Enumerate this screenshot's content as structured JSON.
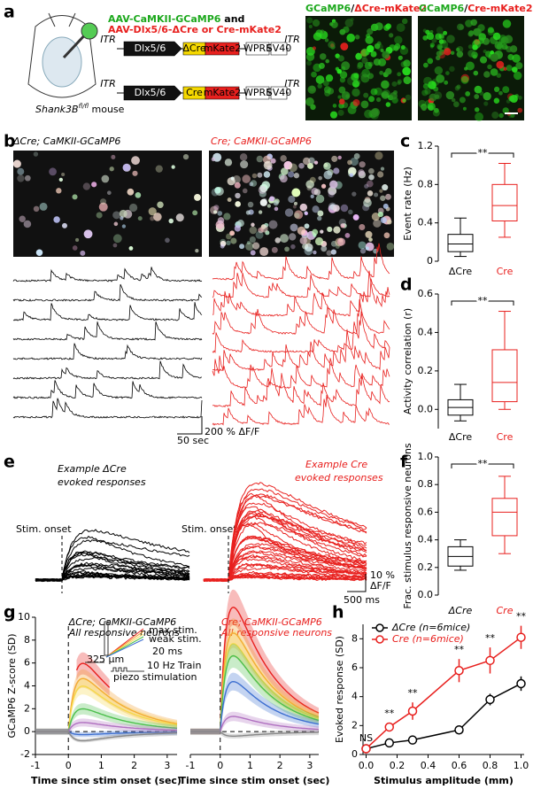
{
  "panel_labels": [
    "a",
    "b",
    "c",
    "d",
    "e",
    "f",
    "g",
    "h"
  ],
  "panel_a": {
    "mouse_name": "Shank3B",
    "mouse_sup": "fl/fl",
    "mouse_suffix": " mouse",
    "virus_green": "AAV-CaMKII-GCaMP6",
    "virus_and": " and",
    "virus_red": "AAV-Dlx5/6-ΔCre or Cre-mKate2",
    "construct1": [
      "ITR",
      "Dlx5/6",
      "ΔCre",
      "mKate2",
      "WPRE",
      "SV40",
      "ITR"
    ],
    "construct2": [
      "ITR",
      "Dlx5/6",
      "Cre",
      "mKate2",
      "WPRE",
      "SV40",
      "ITR"
    ],
    "image_titles": [
      {
        "green": "GCaMP6",
        "sep": "/",
        "red": "ΔCre-mKate2"
      },
      {
        "green": "GCaMP6",
        "sep": "/",
        "red": "Cre-mKate2"
      }
    ]
  },
  "panel_b": {
    "titles": [
      "ΔCre; CaMKII-GCaMP6",
      "Cre; CaMKII-GCaMP6"
    ],
    "scale_y": "200 % ΔF/F",
    "scale_x": "50 sec"
  },
  "panel_e": {
    "left_title": [
      "Example ΔCre",
      "evoked responses"
    ],
    "right_title": [
      "Example Cre",
      "evoked responses"
    ],
    "stim": "Stim. onset",
    "scale_y": [
      "10 %",
      "ΔF/F"
    ],
    "scale_x": "500 ms"
  },
  "panel_g_inset": {
    "depth": "325 µm",
    "max": "max stim.",
    "weak": "weak stim.",
    "pulse": "20 ms",
    "train": "10 Hz Train",
    "piezo": "piezo stimulation"
  },
  "chart_data": [
    {
      "type": "box",
      "ylabel": "Event rate (Hz)",
      "categories": [
        "ΔCre",
        "Cre"
      ],
      "colors": [
        "#000000",
        "#e8201e"
      ],
      "boxes": [
        {
          "whislo": 0.05,
          "q1": 0.1,
          "med": 0.18,
          "q3": 0.28,
          "whishi": 0.45
        },
        {
          "whislo": 0.25,
          "q1": 0.42,
          "med": 0.58,
          "q3": 0.8,
          "whishi": 1.02
        }
      ],
      "ylim": [
        0,
        1.2
      ],
      "yticks": [
        0,
        0.4,
        0.8,
        1.2
      ],
      "annotation": "**"
    },
    {
      "type": "box",
      "ylabel": "Activity correlation (r)",
      "categories": [
        "ΔCre",
        "Cre"
      ],
      "colors": [
        "#000000",
        "#e8201e"
      ],
      "boxes": [
        {
          "whislo": -0.06,
          "q1": -0.03,
          "med": 0.01,
          "q3": 0.05,
          "whishi": 0.13
        },
        {
          "whislo": 0.0,
          "q1": 0.04,
          "med": 0.14,
          "q3": 0.31,
          "whishi": 0.51
        }
      ],
      "ylim": [
        -0.1,
        0.6
      ],
      "yticks": [
        {
          "value": 0,
          "label": "0.0"
        },
        0.2,
        0.4,
        0.6
      ],
      "annotation": "**"
    },
    {
      "type": "box",
      "ylabel": "Frac. stimulus responsive neurons",
      "categories": [
        "ΔCre",
        "Cre"
      ],
      "colors": [
        "#000000",
        "#e8201e"
      ],
      "italic_categories": true,
      "boxes": [
        {
          "whislo": 0.18,
          "q1": 0.21,
          "med": 0.28,
          "q3": 0.35,
          "whishi": 0.4
        },
        {
          "whislo": 0.3,
          "q1": 0.43,
          "med": 0.6,
          "q3": 0.7,
          "whishi": 0.86
        }
      ],
      "ylim": [
        0,
        1
      ],
      "yticks": [
        {
          "value": 0,
          "label": "0.0"
        },
        0.2,
        0.4,
        0.6,
        0.8,
        {
          "value": 1,
          "label": "1.0"
        }
      ],
      "annotation": "**"
    },
    {
      "type": "line",
      "title": "ΔCre; CaMKII-GCaMP6",
      "subtitle": "All responsive neurons",
      "ylabel": "GCaMP6 Z-score (SD)",
      "xlabel": "Time since stim onset (sec)",
      "xlim": [
        -1,
        3.3
      ],
      "ylim": [
        -2,
        10
      ],
      "xticks": [
        -1,
        0,
        1,
        2,
        3
      ],
      "yticks": [
        -2,
        0,
        2,
        4,
        6,
        8,
        10
      ]
    },
    {
      "type": "line",
      "title": "Cre; CaMKII-GCaMP6",
      "subtitle": "All responsive neurons",
      "xlabel": "Time since stim onset (sec)",
      "xlim": [
        -1,
        3.3
      ],
      "ylim": [
        -2,
        10
      ],
      "xticks": [
        -1,
        0,
        1,
        2,
        3
      ]
    },
    {
      "type": "line",
      "xlabel": "Stimulus amplitude (mm)",
      "ylabel": "Evoked response (SD)",
      "x": [
        0,
        0.15,
        0.3,
        0.6,
        0.8,
        1.0
      ],
      "xlim": [
        -0.02,
        1.02
      ],
      "xticks": [
        {
          "value": 0,
          "label": "0.0"
        },
        0.2,
        0.4,
        0.6,
        0.8,
        {
          "value": 1,
          "label": "1.0"
        }
      ],
      "ylim": [
        0,
        9
      ],
      "yticks": [
        0,
        2,
        4,
        6,
        8
      ],
      "legend": "upper left",
      "series": [
        {
          "name": "ΔCre (n=6mice)",
          "color": "#000000",
          "values": [
            0.4,
            0.8,
            1.0,
            1.7,
            3.8,
            4.9
          ],
          "errors": [
            0.1,
            0.2,
            0.2,
            0.3,
            0.4,
            0.5
          ]
        },
        {
          "name": "Cre (n=6mice)",
          "color": "#e8201e",
          "values": [
            0.4,
            1.9,
            3.0,
            5.8,
            6.5,
            8.1
          ],
          "errors": [
            0.1,
            0.3,
            0.6,
            0.8,
            0.9,
            0.8
          ]
        }
      ],
      "annotations": [
        "NS",
        "**",
        "**",
        "**",
        "**",
        "**"
      ]
    }
  ]
}
